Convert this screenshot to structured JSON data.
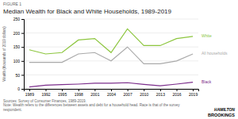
{
  "chart_data": {
    "type": "line",
    "title": "Median Wealth for Black and White Households, 1989-2019",
    "subtitle": "FIGURE 1",
    "y_label": "Wealth (thousands of 2019 dollars)",
    "x": [
      1989,
      1992,
      1995,
      1998,
      2001,
      2004,
      2007,
      2010,
      2013,
      2016,
      2019
    ],
    "series": [
      {
        "name": "White",
        "color": "#8dc63f",
        "values": [
          140,
          125,
          130,
          175,
          180,
          130,
          215,
          155,
          155,
          180,
          188
        ]
      },
      {
        "name": "All households",
        "color": "#aaaaaa",
        "values": [
          95,
          95,
          95,
          125,
          130,
          100,
          150,
          90,
          90,
          100,
          125
        ]
      },
      {
        "name": "Black",
        "color": "#7b2d8b",
        "values": [
          7,
          13,
          15,
          17,
          20,
          20,
          22,
          16,
          11,
          17,
          24
        ]
      }
    ],
    "xlim": [
      1988,
      2020
    ],
    "xticks": [
      1989,
      1992,
      1995,
      1998,
      2001,
      2004,
      2007,
      2010,
      2013,
      2016,
      2019
    ],
    "ylim": [
      0,
      250
    ],
    "yticks": [
      0,
      50,
      100,
      150,
      200,
      250
    ],
    "grid": true,
    "annotations": [
      "Sources: Survey of Consumer Finances, 1989-2019.",
      "Note: Wealth refers to the differences between assets and debt for a household head. Race is that of the survey respondent.",
      "HAMILTON",
      "BROOKINGS"
    ]
  }
}
